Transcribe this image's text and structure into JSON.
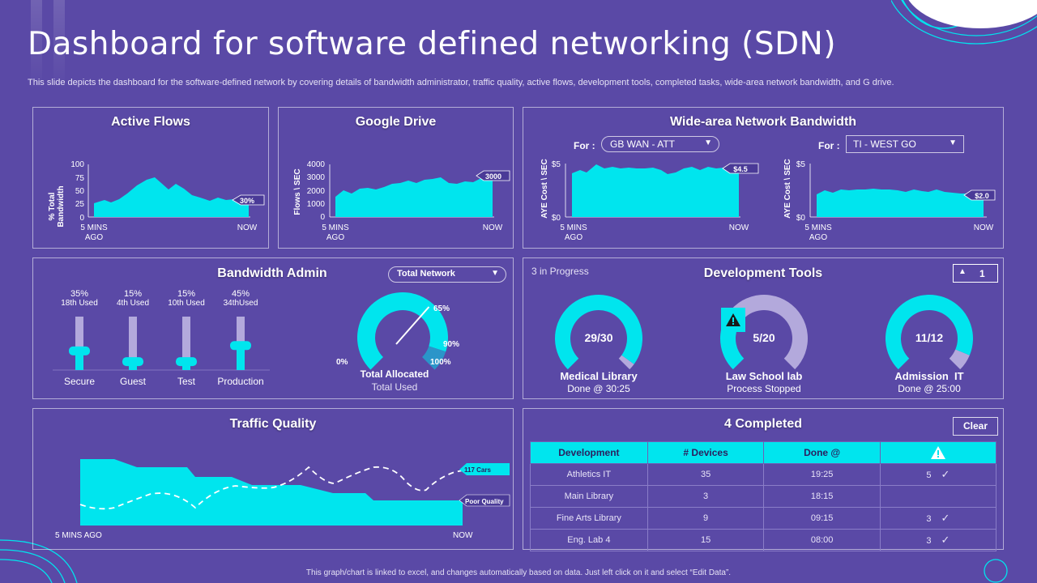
{
  "header": {
    "title": "Dashboard for software defined networking (SDN)",
    "subtitle": "This slide depicts the dashboard for the software-defined network by covering details of bandwidth administrator, traffic quality, active flows, development tools, completed tasks, wide-area network bandwidth, and G drive."
  },
  "active_flows": {
    "title": "Active Flows",
    "ylabel_1": "% Total",
    "ylabel_2": "Bandwidth",
    "yticks": [
      "100",
      "75",
      "50",
      "25",
      "0"
    ],
    "x_start_1": "5 MINS",
    "x_start_2": "AGO",
    "x_end": "NOW",
    "callout": "30%"
  },
  "google_drive": {
    "title": "Google Drive",
    "ylabel": "Flows \\ SEC",
    "yticks": [
      "4000",
      "3000",
      "2000",
      "1000",
      "0"
    ],
    "x_start_1": "5 MINS",
    "x_start_2": "AGO",
    "x_end": "NOW",
    "callout": "3000"
  },
  "wan": {
    "title": "Wide-area Network Bandwidth",
    "left": {
      "for_label": "For :",
      "select": "GB WAN - ATT",
      "ylabel": "AYE Cost \\ SEC",
      "ytop": "$5",
      "ybottom": "$0",
      "x_start_1": "5 MINS",
      "x_start_2": "AGO",
      "x_end": "NOW",
      "callout": "$4.5"
    },
    "right": {
      "for_label": "For :",
      "select": "TI - WEST GO",
      "ylabel": "AYE Cost \\ SEC",
      "ytop": "$5",
      "ybottom": "$0",
      "x_start_1": "5 MINS",
      "x_start_2": "AGO",
      "x_end": "NOW",
      "callout": "$2.0"
    }
  },
  "bandwidth_admin": {
    "title": "Bandwidth Admin",
    "select": "Total Network",
    "sliders": [
      {
        "pct": "35%",
        "used": "18th Used",
        "name": "Secure",
        "level": 0.35
      },
      {
        "pct": "15%",
        "used": "4th Used",
        "name": "Guest",
        "level": 0.15
      },
      {
        "pct": "15%",
        "used": "10th Used",
        "name": "Test",
        "level": 0.15
      },
      {
        "pct": "45%",
        "used": "34thUsed",
        "name": "Production",
        "level": 0.45
      }
    ],
    "gauge": {
      "label_0": "0%",
      "label_65": "65%",
      "label_90": "90%",
      "label_100": "100%",
      "title": "Total Allocated",
      "subtitle": "Total Used",
      "value": 0.65
    }
  },
  "dev_tools": {
    "title": "Development Tools",
    "status": "3 in Progress",
    "alert_count": "1",
    "items": [
      {
        "value": "29/30",
        "name": "Medical Library",
        "sub": "Done @ 30:25",
        "fraction": 0.967
      },
      {
        "value": "5/20",
        "name": "Law School lab",
        "sub": "Process Stopped",
        "fraction": 0.25
      },
      {
        "value": "11/12",
        "name": "Admission  IT",
        "sub": "Done @ 25:00",
        "fraction": 0.917
      }
    ]
  },
  "traffic_quality": {
    "title": "Traffic Quality",
    "x_start": "5 MINS AGO",
    "x_end": "NOW",
    "callout_cars": "117  Cars",
    "callout_quality": "Poor Quality"
  },
  "completed": {
    "title": "4 Completed",
    "clear_label": "Clear",
    "headers": [
      "Development",
      "# Devices",
      "Done @"
    ],
    "rows": [
      {
        "name": "Athletics IT",
        "devices": "35",
        "done": "19:25",
        "alerts": "5",
        "checked": true
      },
      {
        "name": "Main Library",
        "devices": "3",
        "done": "18:15",
        "alerts": "",
        "checked": false
      },
      {
        "name": "Fine Arts Library",
        "devices": "9",
        "done": "09:15",
        "alerts": "3",
        "checked": true
      },
      {
        "name": "Eng. Lab 4",
        "devices": "15",
        "done": "08:00",
        "alerts": "3",
        "checked": true
      }
    ]
  },
  "footer": {
    "note": "This graph/chart is linked to excel, and changes automatically based on data. Just left click on it and select “Edit Data”."
  },
  "colors": {
    "background": "#5a49a6",
    "accent": "#00e5ee",
    "gauge_track": "#b3a9dc",
    "callout": "#4a3a97"
  }
}
